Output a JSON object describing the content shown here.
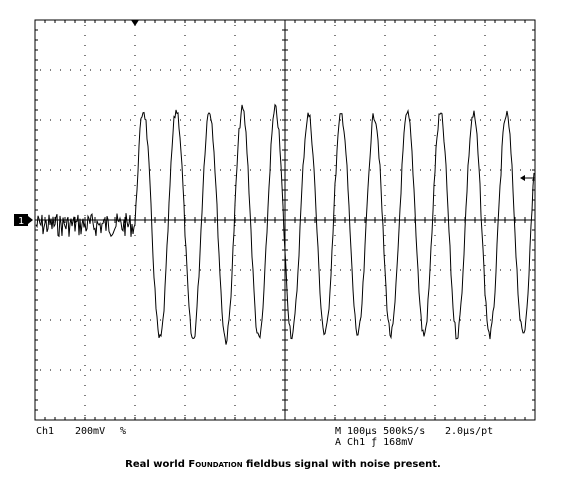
{
  "scope": {
    "channel_marker": "1",
    "status_left": {
      "channel": "Ch1",
      "scale": "200mV",
      "coupling": "%"
    },
    "status_right": {
      "timebase": "M 100µs 500kS/s",
      "resolution": "2.0µs/pt",
      "trigger": "A Ch1  ƒ  168mV"
    }
  },
  "caption": {
    "before": "Real world ",
    "small_caps": "Foundation",
    "after": " fieldbus signal with noise present."
  }
}
